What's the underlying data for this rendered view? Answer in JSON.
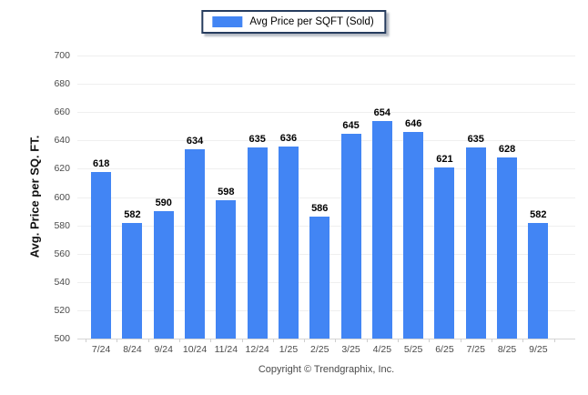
{
  "legend": {
    "label": "Avg Price per SQFT (Sold)"
  },
  "footer": {
    "copyright": "Copyright © Trendgraphix, Inc."
  },
  "colors": {
    "bar": "#4285F4",
    "legend_border": "#263C5E",
    "gridline": "#EFEFEF",
    "baseline": "#D6D6D6",
    "tick_text": "#4A4A4A",
    "value_text": "#000000",
    "background": "#FFFFFF"
  },
  "chart_data": {
    "type": "bar",
    "title": "",
    "xlabel": "",
    "ylabel": "Avg. Price per SQ. FT.",
    "series_name": "Avg Price per SQFT (Sold)",
    "categories": [
      "7/24",
      "8/24",
      "9/24",
      "10/24",
      "11/24",
      "12/24",
      "1/25",
      "2/25",
      "3/25",
      "4/25",
      "5/25",
      "6/25",
      "7/25",
      "8/25",
      "9/25"
    ],
    "values": [
      618,
      582,
      590,
      634,
      598,
      635,
      636,
      586,
      645,
      654,
      646,
      621,
      635,
      628,
      582
    ],
    "ylim": [
      500,
      700
    ],
    "ytick_step": 20,
    "grid": true,
    "value_labels": true,
    "legend_position": "top-center",
    "bar_color": "#4285F4"
  }
}
